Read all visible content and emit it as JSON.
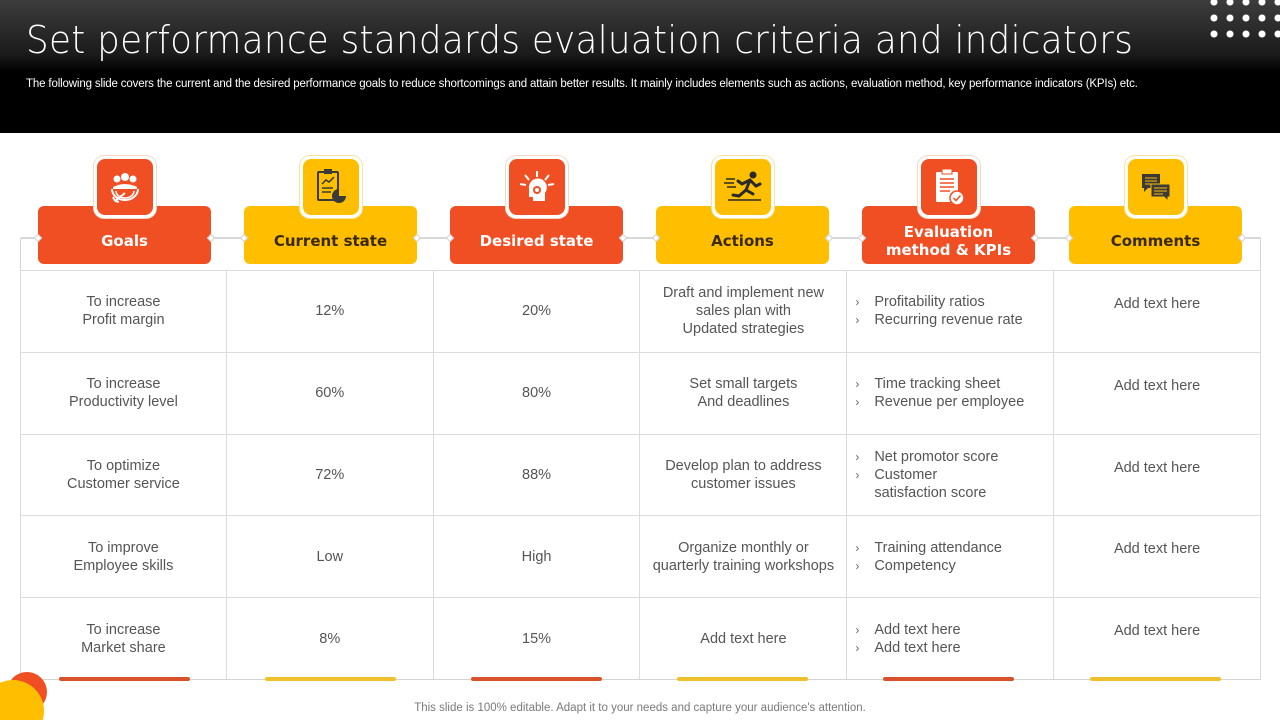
{
  "slide": {
    "title": "Set performance standards evaluation criteria and indicators",
    "subtitle": "The following slide covers the current and the desired performance goals to reduce shortcomings and attain better results. It mainly includes elements such as actions, evaluation method, key performance indicators (KPIs) etc.",
    "footer_note": "This slide is 100% editable. Adapt it to your needs and capture your audience's attention."
  },
  "colors": {
    "orange": "#f04e23",
    "yellow": "#ffbf00",
    "header_bg": "#000000",
    "cell_text": "#555555"
  },
  "columns": [
    {
      "label": "Goals",
      "icon": "target-team-icon",
      "color": "orange"
    },
    {
      "label": "Current state",
      "icon": "clipboard-chart-icon",
      "color": "yellow"
    },
    {
      "label": "Desired state",
      "icon": "head-gear-idea-icon",
      "color": "orange"
    },
    {
      "label": "Actions",
      "icon": "running-person-icon",
      "color": "yellow"
    },
    {
      "label": "Evaluation method & KPIs",
      "icon": "checklist-clipboard-icon",
      "color": "orange"
    },
    {
      "label": "Comments",
      "icon": "chat-bubbles-icon",
      "color": "yellow"
    }
  ],
  "rows": [
    {
      "goal": "To increase\nProfit margin",
      "current": "12%",
      "desired": "20%",
      "action": "Draft and implement new\nsales plan with\nUpdated strategies",
      "kpis": [
        "Profitability ratios",
        "Recurring revenue rate"
      ],
      "comment": "Add text here"
    },
    {
      "goal": "To increase\nProductivity level",
      "current": "60%",
      "desired": "80%",
      "action": "Set small targets\nAnd deadlines",
      "kpis": [
        "Time tracking sheet",
        "Revenue per employee"
      ],
      "comment": "Add text here"
    },
    {
      "goal": "To optimize\nCustomer service",
      "current": "72%",
      "desired": "88%",
      "action": "Develop plan to address\ncustomer issues",
      "kpis": [
        "Net promotor score",
        "Customer\nsatisfaction score"
      ],
      "comment": "Add text here"
    },
    {
      "goal": "To improve\nEmployee skills",
      "current": "Low",
      "desired": "High",
      "action": "Organize monthly or\nquarterly training workshops",
      "kpis": [
        "Training attendance",
        "Competency"
      ],
      "comment": "Add text here"
    },
    {
      "goal": "To increase\nMarket share",
      "current": "8%",
      "desired": "15%",
      "action": "Add text here",
      "kpis": [
        "Add text here",
        "Add text here"
      ],
      "comment": "Add text here"
    }
  ],
  "kpi_bullet": "›"
}
